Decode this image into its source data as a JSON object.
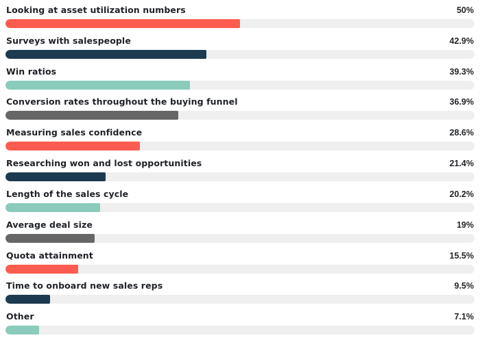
{
  "chart_data": {
    "type": "bar",
    "orientation": "horizontal",
    "title": "",
    "xlabel": "",
    "ylabel": "",
    "xlim": [
      0,
      100
    ],
    "grid": false,
    "legend": false,
    "categories": [
      "Looking at asset utilization numbers",
      "Surveys with salespeople",
      "Win ratios",
      "Conversion rates throughout the buying funnel",
      "Measuring sales confidence",
      "Researching won and lost opportunities",
      "Length of the sales cycle",
      "Average deal size",
      "Quota attainment",
      "Time to onboard new sales reps",
      "Other"
    ],
    "values": [
      50,
      42.9,
      39.3,
      36.9,
      28.6,
      21.4,
      20.2,
      19,
      15.5,
      9.5,
      7.1
    ],
    "value_labels": [
      "50%",
      "42.9%",
      "39.3%",
      "36.9%",
      "28.6%",
      "21.4%",
      "20.2%",
      "19%",
      "15.5%",
      "9.5%",
      "7.1%"
    ],
    "bar_colors": [
      "#fc5c4f",
      "#1c3a50",
      "#8acbbb",
      "#666666",
      "#fc5c4f",
      "#1c3a50",
      "#8acbbb",
      "#666666",
      "#fc5c4f",
      "#1c3a50",
      "#8acbbb"
    ]
  },
  "colors": {
    "coral": "#fc5c4f",
    "navy": "#1c3a50",
    "teal": "#8acbbb",
    "gray": "#666666",
    "track": "#efefef",
    "label_text": "#1e2126",
    "value_text": "#222428",
    "background": "#ffffff"
  }
}
